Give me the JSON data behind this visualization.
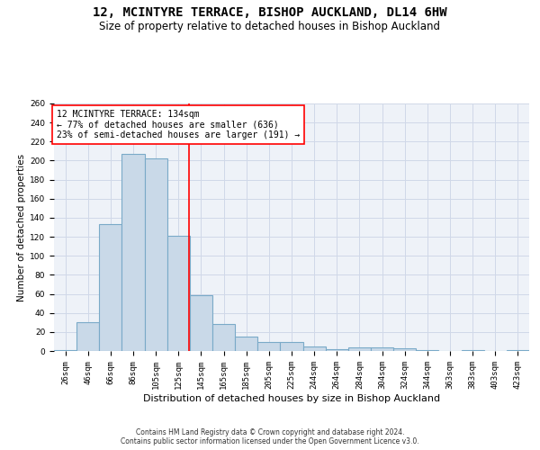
{
  "title": "12, MCINTYRE TERRACE, BISHOP AUCKLAND, DL14 6HW",
  "subtitle": "Size of property relative to detached houses in Bishop Auckland",
  "xlabel": "Distribution of detached houses by size in Bishop Auckland",
  "ylabel": "Number of detached properties",
  "footer_line1": "Contains HM Land Registry data © Crown copyright and database right 2024.",
  "footer_line2": "Contains public sector information licensed under the Open Government Licence v3.0.",
  "bar_labels": [
    "26sqm",
    "46sqm",
    "66sqm",
    "86sqm",
    "105sqm",
    "125sqm",
    "145sqm",
    "165sqm",
    "185sqm",
    "205sqm",
    "225sqm",
    "244sqm",
    "264sqm",
    "284sqm",
    "304sqm",
    "324sqm",
    "344sqm",
    "363sqm",
    "383sqm",
    "403sqm",
    "423sqm"
  ],
  "bar_values": [
    1,
    30,
    133,
    207,
    202,
    121,
    59,
    28,
    15,
    9,
    9,
    5,
    2,
    4,
    4,
    3,
    1,
    0,
    1,
    0,
    1
  ],
  "bar_color": "#c9d9e8",
  "bar_edgecolor": "#7aaac8",
  "bar_linewidth": 0.8,
  "grid_color": "#d0d8e8",
  "background_color": "#eef2f8",
  "annotation_box_line": "12 MCINTYRE TERRACE: 134sqm",
  "annotation_line1": "← 77% of detached houses are smaller (636)",
  "annotation_line2": "23% of semi-detached houses are larger (191) →",
  "annotation_box_color": "red",
  "ylim": [
    0,
    260
  ],
  "yticks": [
    0,
    20,
    40,
    60,
    80,
    100,
    120,
    140,
    160,
    180,
    200,
    220,
    240,
    260
  ],
  "title_fontsize": 10,
  "subtitle_fontsize": 8.5,
  "xlabel_fontsize": 8,
  "ylabel_fontsize": 7.5,
  "tick_fontsize": 6.5,
  "annotation_fontsize": 7,
  "footer_fontsize": 5.5
}
